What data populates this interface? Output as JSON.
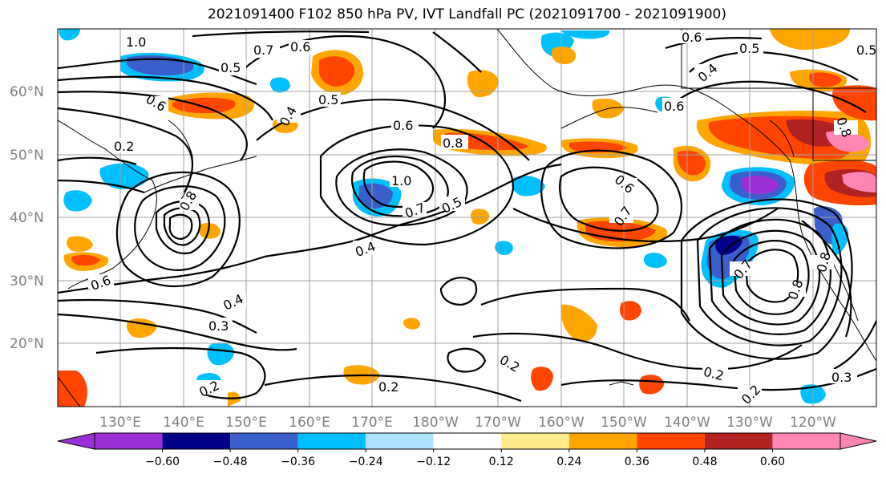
{
  "title": "2021091400 F102 850 hPa PV, IVT Landfall PC (2021091700 - 2021091900)",
  "lat_labels": [
    "60°N",
    "50°N",
    "40°N",
    "30°N",
    "20°N"
  ],
  "lon_labels": [
    "130°E",
    "140°E",
    "150°E",
    "160°E",
    "170°E",
    "180°W",
    "170°W",
    "160°W",
    "150°W",
    "140°W",
    "130°W",
    "120°W"
  ],
  "colorbar": {
    "colors": [
      "#9b30d6",
      "#00008b",
      "#3a5fcd",
      "#00bfff",
      "#b0e2ff",
      "#ffffff",
      "#ffec8b",
      "#ffa500",
      "#ff4500",
      "#b22222",
      "#ff86b4"
    ],
    "tick_labels": [
      "−0.60",
      "−0.48",
      "−0.36",
      "−0.24",
      "−0.12",
      "0.12",
      "0.24",
      "0.36",
      "0.48",
      "0.60"
    ]
  },
  "contour_labels": [
    "1.0",
    "0.8",
    "0.7",
    "0.6",
    "0.5",
    "0.6",
    "0.5",
    "0.4",
    "0.2",
    "0.6",
    "0.8",
    "1.0",
    "0.7",
    "0.5",
    "0.6",
    "0.7",
    "0.4",
    "0.4",
    "0.3",
    "0.2",
    "0.2",
    "0.2",
    "0.7",
    "0.8",
    "0.2",
    "0.3",
    "0.2",
    "0.6",
    "0.6",
    "0.5",
    "0.4",
    "0.6",
    "0.5",
    "0.8",
    "0.8"
  ]
}
